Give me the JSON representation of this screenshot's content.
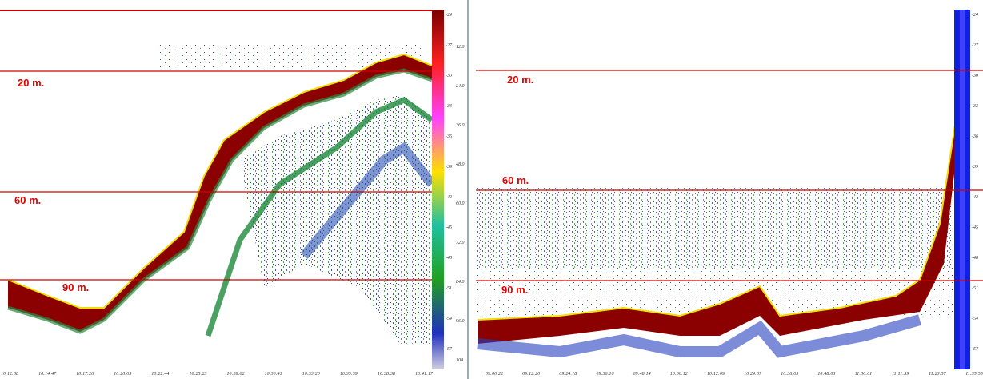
{
  "panels": [
    {
      "depth_labels": [
        "20 m.",
        "60 m.",
        "90 m."
      ],
      "time_labels": [
        "10:12:08",
        "10:14:47",
        "10:17:26",
        "10:20:05",
        "10:22:44",
        "10:25:23",
        "10:28:02",
        "10:30:41",
        "10:33:20",
        "10:35:59",
        "10:38:38",
        "10:41:17"
      ],
      "scale_labels": [
        "-24",
        "-27",
        "-30",
        "-33",
        "-36",
        "-39",
        "-42",
        "-45",
        "-48",
        "-51",
        "-54",
        "-57"
      ],
      "depth_axis_labels": [
        "12.0",
        "24.0",
        "36.0",
        "48.0",
        "60.0",
        "72.0",
        "84.0",
        "96.0",
        "108."
      ]
    },
    {
      "depth_labels": [
        "20 m.",
        "60 m.",
        "90 m."
      ],
      "time_labels": [
        "09:00:22",
        "09:12:20",
        "09:24:18",
        "09:36:16",
        "09:48:14",
        "10:00:12",
        "10:12:09",
        "10:24:07",
        "10:36:05",
        "10:48:03",
        "11:00:01",
        "11:11:59",
        "11:23:57",
        "11:35:55"
      ],
      "scale_labels": [
        "-24",
        "-27",
        "-30",
        "-33",
        "-36",
        "-39",
        "-42",
        "-45",
        "-48",
        "-51",
        "-54",
        "-57"
      ]
    }
  ]
}
